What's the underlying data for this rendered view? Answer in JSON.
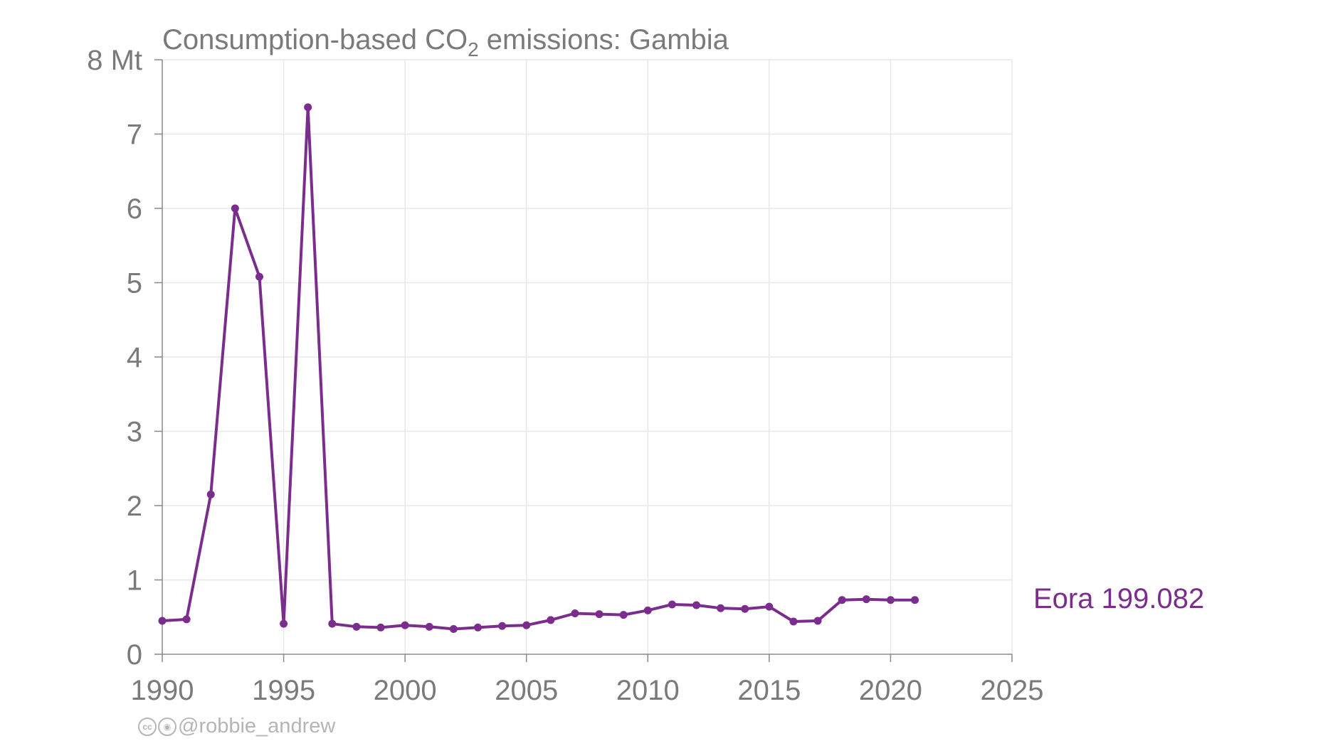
{
  "chart_data": {
    "type": "line",
    "title_parts": [
      "Consumption-based CO",
      "2",
      " emissions: Gambia"
    ],
    "xlabel": "",
    "ylabel": "",
    "xlim": [
      1990,
      2025
    ],
    "ylim": [
      0,
      8
    ],
    "x_ticks": [
      1990,
      1995,
      2000,
      2005,
      2010,
      2015,
      2020,
      2025
    ],
    "y_ticks": [
      0,
      1,
      2,
      3,
      4,
      5,
      6,
      7,
      8
    ],
    "y_tick_labels": [
      "0",
      "1",
      "2",
      "3",
      "4",
      "5",
      "6",
      "7",
      "8 Mt"
    ],
    "grid": true,
    "series": [
      {
        "name": "Eora 199.082",
        "color": "#7b2d8e",
        "x": [
          1990,
          1991,
          1992,
          1993,
          1994,
          1995,
          1996,
          1997,
          1998,
          1999,
          2000,
          2001,
          2002,
          2003,
          2004,
          2005,
          2006,
          2007,
          2008,
          2009,
          2010,
          2011,
          2012,
          2013,
          2014,
          2015,
          2016,
          2017,
          2018,
          2019,
          2020,
          2021
        ],
        "y": [
          0.45,
          0.47,
          2.15,
          6.0,
          5.08,
          0.41,
          7.36,
          0.41,
          0.37,
          0.36,
          0.39,
          0.37,
          0.34,
          0.36,
          0.38,
          0.39,
          0.46,
          0.55,
          0.54,
          0.53,
          0.59,
          0.67,
          0.66,
          0.62,
          0.61,
          0.64,
          0.44,
          0.45,
          0.73,
          0.74,
          0.73,
          0.73
        ]
      }
    ]
  },
  "credit": {
    "handle": "@robbie_andrew",
    "icons": [
      "cc-icon",
      "by-icon"
    ]
  }
}
